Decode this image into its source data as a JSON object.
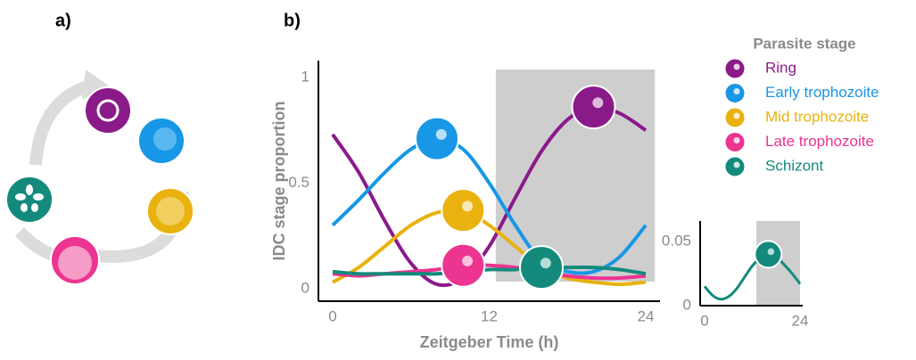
{
  "panel_labels": [
    "a)",
    "b)"
  ],
  "chart_data": [
    {
      "type": "line",
      "y_label": "IDC stage proportion",
      "x_label": "Zeitgeber Time (h)",
      "legend_title": "Parasite stage",
      "legend": "right",
      "x": [
        0,
        2,
        4,
        6,
        8,
        10,
        12,
        14,
        16,
        18,
        20,
        22,
        24
      ],
      "xlim": [
        -1,
        25
      ],
      "xticks": [
        0,
        12,
        24
      ],
      "ylim": [
        -0.06,
        1.08
      ],
      "yticks": [
        0,
        0.5,
        1
      ],
      "shade_x": [
        12.5,
        24.7
      ],
      "series": [
        {
          "name": "Ring",
          "color": "#8b1a89",
          "values": [
            0.73,
            0.55,
            0.32,
            0.12,
            0.02,
            0.05,
            0.2,
            0.43,
            0.65,
            0.8,
            0.86,
            0.83,
            0.75
          ]
        },
        {
          "name": "Early trophozoite",
          "color": "#1797e6",
          "values": [
            0.3,
            0.42,
            0.55,
            0.66,
            0.71,
            0.66,
            0.5,
            0.3,
            0.13,
            0.08,
            0.08,
            0.15,
            0.3
          ]
        },
        {
          "name": "Mid trophozoite",
          "color": "#e9b20e",
          "values": [
            0.03,
            0.1,
            0.2,
            0.3,
            0.36,
            0.37,
            0.3,
            0.2,
            0.1,
            0.05,
            0.03,
            0.02,
            0.03
          ]
        },
        {
          "name": "Late trophozoite",
          "color": "#ec3491",
          "values": [
            0.07,
            0.06,
            0.07,
            0.08,
            0.09,
            0.11,
            0.11,
            0.1,
            0.08,
            0.06,
            0.05,
            0.05,
            0.06
          ]
        },
        {
          "name": "Schizont",
          "color": "#138a7c",
          "values": [
            0.08,
            0.07,
            0.07,
            0.07,
            0.07,
            0.08,
            0.09,
            0.09,
            0.1,
            0.1,
            0.1,
            0.09,
            0.07
          ]
        }
      ]
    },
    {
      "type": "line",
      "x": [
        0,
        2,
        4,
        6,
        8,
        10,
        12,
        14,
        16,
        18,
        20,
        22,
        24
      ],
      "xlim": [
        -0.5,
        25
      ],
      "xticks": [
        0,
        24
      ],
      "ylim": [
        0,
        0.066
      ],
      "yticks": [
        0,
        0.05
      ],
      "shade_x": [
        13,
        24
      ],
      "color": "#138a7c",
      "values": [
        0.015,
        0.008,
        0.005,
        0.007,
        0.013,
        0.022,
        0.031,
        0.037,
        0.04,
        0.038,
        0.032,
        0.025,
        0.017
      ]
    }
  ]
}
